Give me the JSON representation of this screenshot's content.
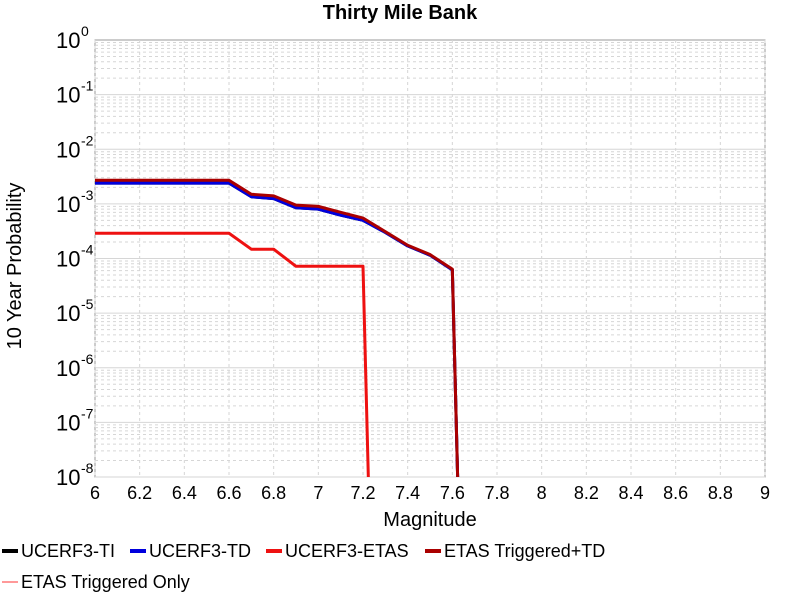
{
  "chart_data": {
    "type": "line",
    "title": "Thirty Mile Bank",
    "xlabel": "Magnitude",
    "ylabel": "10 Year Probability",
    "xlim": [
      6,
      9
    ],
    "ylim": [
      1e-08,
      1
    ],
    "yscale": "log",
    "grid": true,
    "legend_position": "bottom",
    "x_ticks": [
      "6",
      "6.2",
      "6.4",
      "6.6",
      "6.8",
      "7",
      "7.2",
      "7.4",
      "7.6",
      "7.8",
      "8",
      "8.2",
      "8.4",
      "8.6",
      "8.8",
      "9"
    ],
    "y_ticks": [
      {
        "base": "10",
        "exp": "0"
      },
      {
        "base": "10",
        "exp": "-1"
      },
      {
        "base": "10",
        "exp": "-2"
      },
      {
        "base": "10",
        "exp": "-3"
      },
      {
        "base": "10",
        "exp": "-4"
      },
      {
        "base": "10",
        "exp": "-5"
      },
      {
        "base": "10",
        "exp": "-6"
      },
      {
        "base": "10",
        "exp": "-7"
      },
      {
        "base": "10",
        "exp": "-8"
      }
    ],
    "series": [
      {
        "name": "UCERF3-TI",
        "color": "#000000",
        "x": [
          6.0,
          6.1,
          6.2,
          6.3,
          6.4,
          6.5,
          6.6,
          6.7,
          6.8,
          6.9,
          7.0,
          7.1,
          7.2,
          7.3,
          7.4,
          7.5,
          7.6,
          7.63
        ],
        "y": [
          0.0024,
          0.0024,
          0.0024,
          0.0024,
          0.0024,
          0.0024,
          0.0024,
          0.00135,
          0.00125,
          0.00085,
          0.0008,
          0.00062,
          0.0005,
          0.0003,
          0.00017,
          0.000115,
          6.2e-05,
          1e-09
        ]
      },
      {
        "name": "UCERF3-TD",
        "color": "#0000dd",
        "x": [
          6.0,
          6.1,
          6.2,
          6.3,
          6.4,
          6.5,
          6.6,
          6.7,
          6.8,
          6.9,
          7.0,
          7.1,
          7.2,
          7.3,
          7.4,
          7.5,
          7.6,
          7.63
        ],
        "y": [
          0.0024,
          0.0024,
          0.0024,
          0.0024,
          0.0024,
          0.0024,
          0.0024,
          0.00135,
          0.00125,
          0.00085,
          0.0008,
          0.00062,
          0.0005,
          0.0003,
          0.00017,
          0.000115,
          6.2e-05,
          1e-09
        ]
      },
      {
        "name": "UCERF3-ETAS",
        "color": "#ee1111",
        "x": [
          6.0,
          6.1,
          6.2,
          6.3,
          6.4,
          6.5,
          6.6,
          6.7,
          6.8,
          6.9,
          7.0,
          7.1,
          7.2,
          7.23
        ],
        "y": [
          0.00029,
          0.00029,
          0.00029,
          0.00029,
          0.00029,
          0.00029,
          0.00029,
          0.000148,
          0.000148,
          7.2e-05,
          7.2e-05,
          7.2e-05,
          7.2e-05,
          1e-09
        ]
      },
      {
        "name": "ETAS Triggered+TD",
        "color": "#aa0000",
        "x": [
          6.0,
          6.1,
          6.2,
          6.3,
          6.4,
          6.5,
          6.6,
          6.7,
          6.8,
          6.9,
          7.0,
          7.1,
          7.2,
          7.3,
          7.4,
          7.5,
          7.6,
          7.63
        ],
        "y": [
          0.0027,
          0.0027,
          0.0027,
          0.0027,
          0.0027,
          0.0027,
          0.0027,
          0.0015,
          0.0014,
          0.00095,
          0.0009,
          0.0007,
          0.00055,
          0.00031,
          0.000175,
          0.000118,
          6.4e-05,
          1e-09
        ]
      },
      {
        "name": "ETAS Triggered Only",
        "color": "#ff9999",
        "x": [],
        "y": []
      }
    ]
  }
}
